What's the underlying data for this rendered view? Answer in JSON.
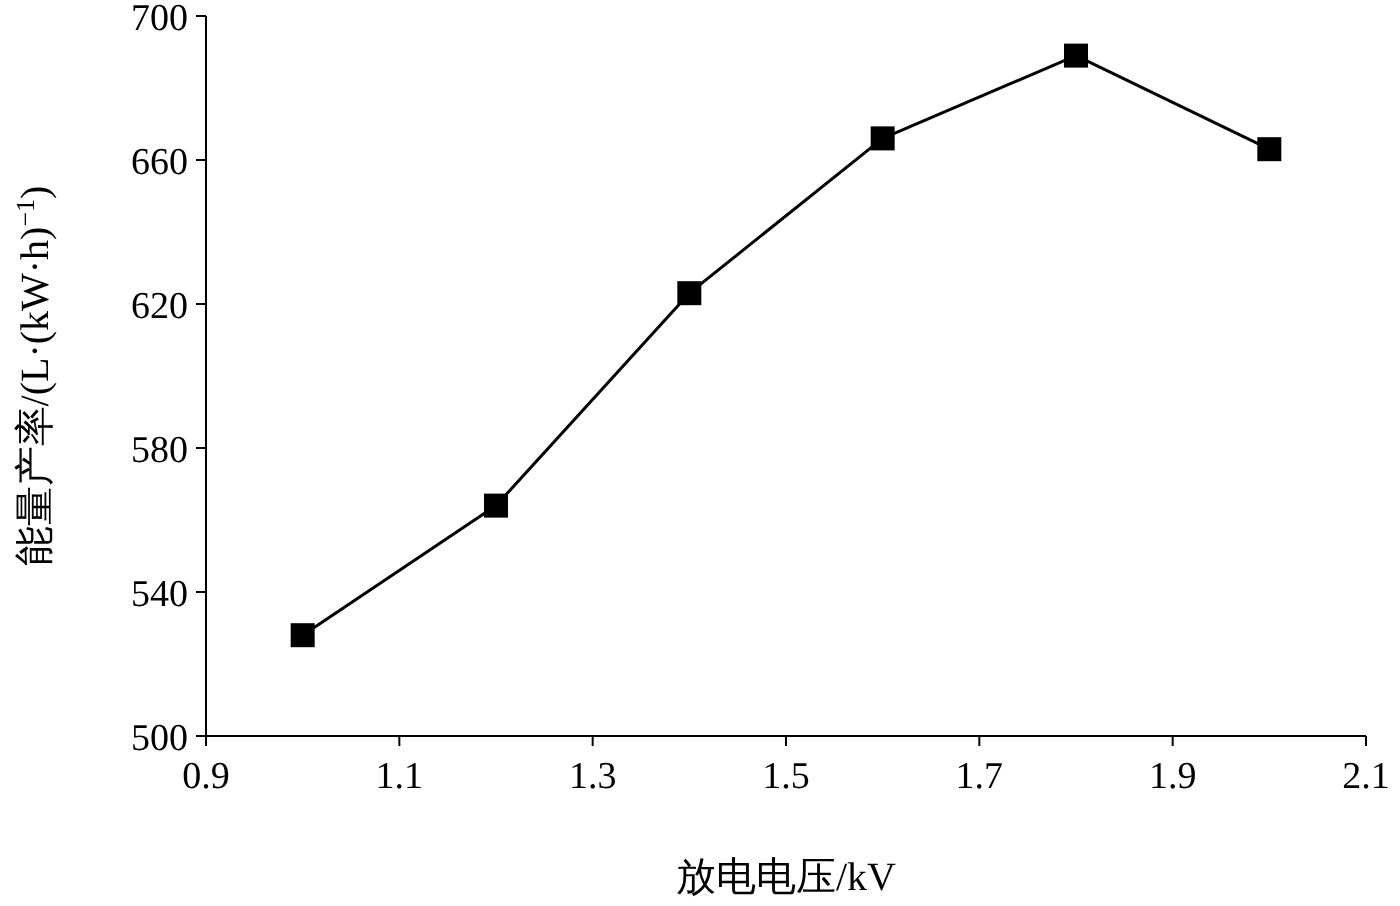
{
  "chart_data": {
    "type": "line",
    "xlabel": "放电电压/kV",
    "ylabel": "能量产率/(L·(kW·h)$^{−1}$)",
    "x": [
      1.0,
      1.2,
      1.4,
      1.6,
      1.8,
      2.0
    ],
    "series": [
      {
        "color": "#000000",
        "values": [
          528,
          564,
          623,
          666,
          689,
          663
        ]
      }
    ],
    "xlim": [
      0.9,
      2.1
    ],
    "xticks": [
      0.9,
      1.1,
      1.3,
      1.5,
      1.7,
      1.9,
      2.1
    ],
    "ylim": [
      500,
      700
    ],
    "yticks": [
      500,
      540,
      580,
      620,
      660,
      700
    ],
    "marker": "square",
    "line_style": "solid",
    "grid": false
  }
}
